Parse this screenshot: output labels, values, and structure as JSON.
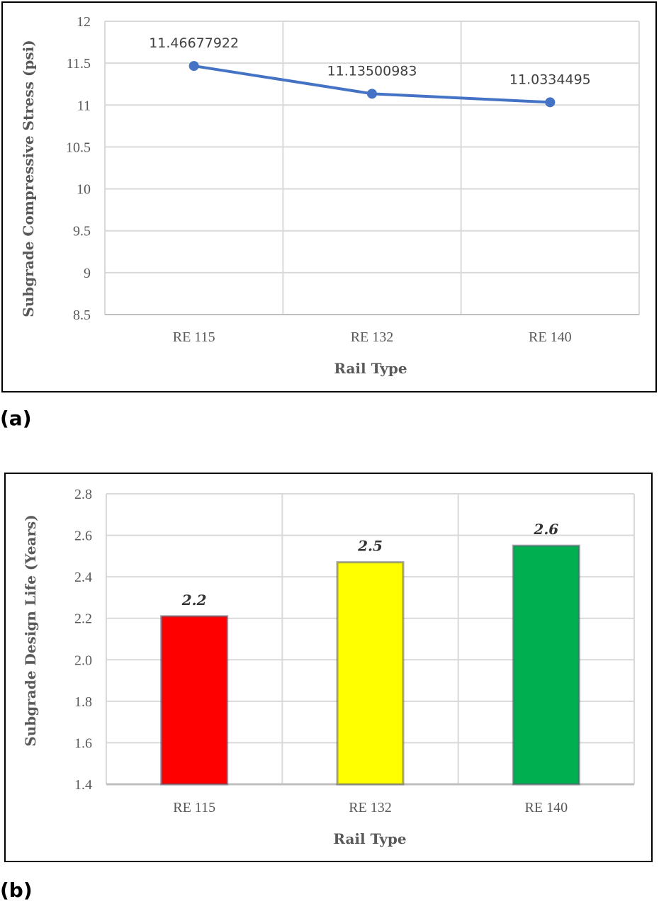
{
  "chart_data": [
    {
      "type": "line",
      "categories": [
        "RE 115",
        "RE 132",
        "RE 140"
      ],
      "series": [
        {
          "values": [
            11.46677922,
            11.13500983,
            11.0334495
          ],
          "color": "#4472C4"
        }
      ],
      "data_labels": [
        "11.46677922",
        "11.13500983",
        "11.0334495"
      ],
      "xlabel": "Rail Type",
      "ylabel": "Subgrade Compressive Stress (psi)",
      "ylim": [
        8.5,
        12
      ],
      "yticks": [
        "8.5",
        "9",
        "9.5",
        "10",
        "10.5",
        "11",
        "11.5",
        "12"
      ],
      "grid": true
    },
    {
      "type": "bar",
      "categories": [
        "RE 115",
        "RE 132",
        "RE 140"
      ],
      "values": [
        2.21,
        2.47,
        2.55
      ],
      "data_labels": [
        "2.2",
        "2.5",
        "2.6"
      ],
      "colors": [
        "#FF0000",
        "#FFFF00",
        "#00B050"
      ],
      "xlabel": "Rail Type",
      "ylabel": "Subgrade Design Life (Years)",
      "ylim": [
        1.4,
        2.8
      ],
      "yticks": [
        "1.4",
        "1.6",
        "1.8",
        "2.0",
        "2.2",
        "2.4",
        "2.6",
        "2.8"
      ],
      "grid": true
    }
  ],
  "panels": {
    "a": "(a)",
    "b": "(b)"
  }
}
